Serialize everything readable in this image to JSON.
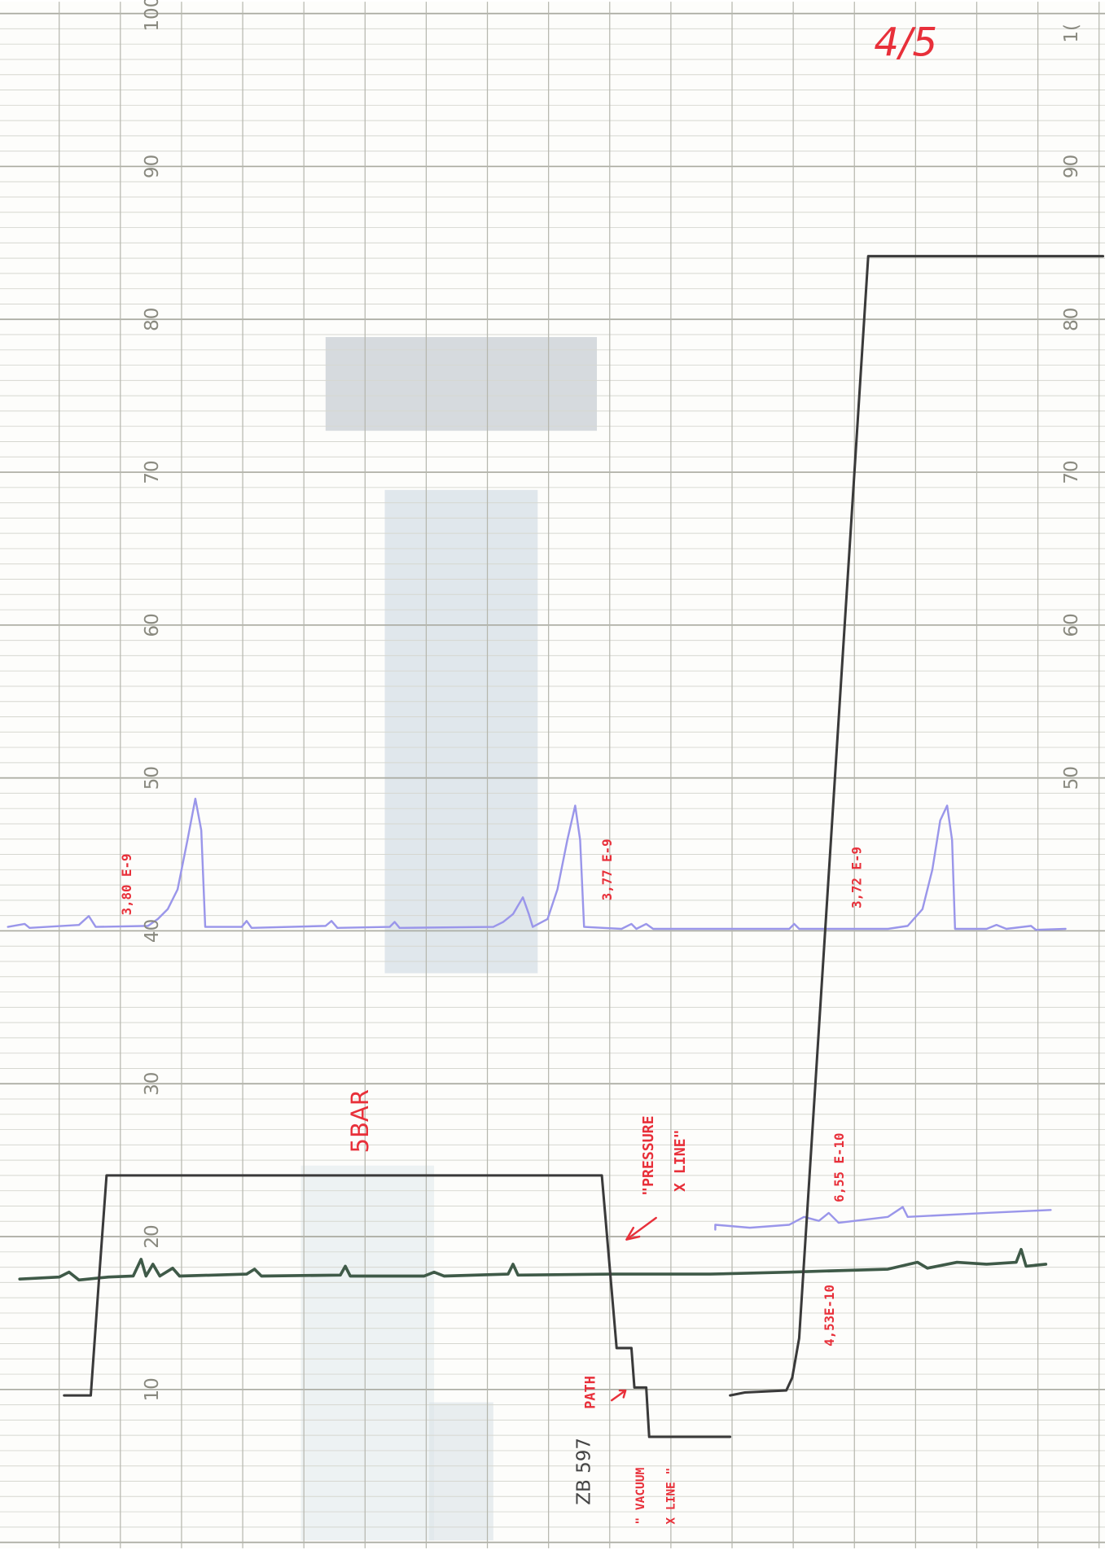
{
  "page_number": "4/5",
  "chart_id": "ZB 597",
  "left_scale": [
    "100",
    "90",
    "80",
    "70",
    "60",
    "50",
    "40",
    "30",
    "20",
    "10"
  ],
  "right_scale": [
    "1(",
    "90",
    "80",
    "70",
    "60",
    "50"
  ],
  "annotations": [
    "3,80 E-9",
    "3,77 E-9",
    "3,72 E-9",
    "5BAR",
    "\"PRESSURE",
    "X LINE\"",
    "6,55 E-10",
    "4,53E-10",
    "PATH",
    "\" VACUUM",
    "X LINE \""
  ]
}
